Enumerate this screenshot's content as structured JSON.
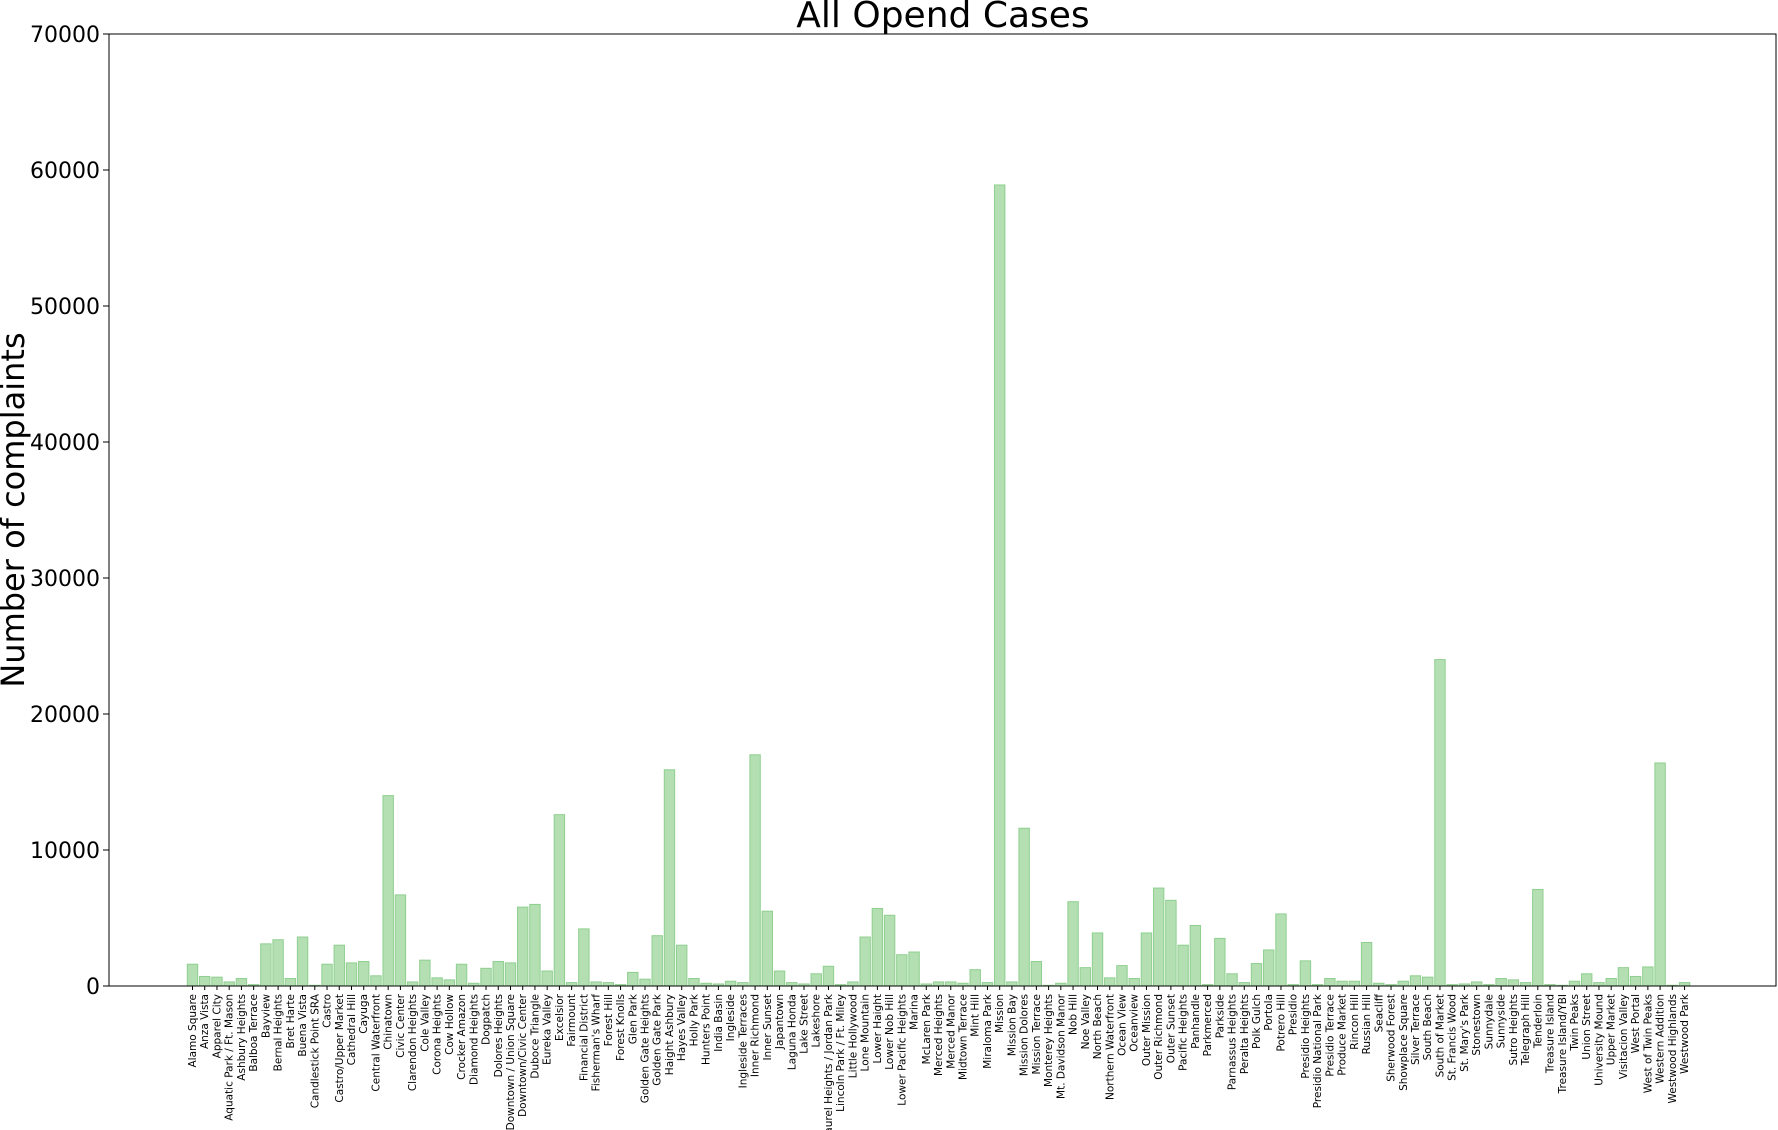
{
  "chart_data": {
    "type": "bar",
    "title": "All Opend Cases",
    "xlabel": "",
    "ylabel": "Number of complaints",
    "ylim": [
      0,
      70000
    ],
    "yticks": [
      0,
      10000,
      20000,
      30000,
      40000,
      50000,
      60000,
      70000
    ],
    "grid": false,
    "bar_color": "#b3dfb3",
    "bar_edge_color": "#8fcf8f",
    "categories": [
      "Alamo Square",
      "Anza Vista",
      "Apparel City",
      "Aquatic Park / Ft. Mason",
      "Ashbury Heights",
      "Balboa Terrace",
      "Bayview",
      "Bernal Heights",
      "Bret Harte",
      "Buena Vista",
      "Candlestick Point SRA",
      "Castro",
      "Castro/Upper Market",
      "Cathedral Hill",
      "Cayuga",
      "Central Waterfront",
      "Chinatown",
      "Civic Center",
      "Clarendon Heights",
      "Cole Valley",
      "Corona Heights",
      "Cow Hollow",
      "Crocker Amazon",
      "Diamond Heights",
      "Dogpatch",
      "Dolores Heights",
      "Downtown / Union Square",
      "Downtown/Civic Center",
      "Duboce Triangle",
      "Eureka Valley",
      "Excelsior",
      "Fairmount",
      "Financial District",
      "Fisherman's Wharf",
      "Forest Hill",
      "Forest Knolls",
      "Glen Park",
      "Golden Gate Heights",
      "Golden Gate Park",
      "Haight Ashbury",
      "Hayes Valley",
      "Holly Park",
      "Hunters Point",
      "India Basin",
      "Ingleside",
      "Ingleside Terraces",
      "Inner Richmond",
      "Inner Sunset",
      "Japantown",
      "Laguna Honda",
      "Lake Street",
      "Lakeshore",
      "Laurel Heights / Jordan Park",
      "Lincoln Park / Ft. Miley",
      "Little Hollywood",
      "Lone Mountain",
      "Lower Haight",
      "Lower Nob Hill",
      "Lower Pacific Heights",
      "Marina",
      "McLaren Park",
      "Merced Heights",
      "Merced Manor",
      "Midtown Terrace",
      "Mint Hill",
      "Miraloma Park",
      "Mission",
      "Mission Bay",
      "Mission Dolores",
      "Mission Terrace",
      "Monterey Heights",
      "Mt. Davidson Manor",
      "Nob Hill",
      "Noe Valley",
      "North Beach",
      "Northern Waterfront",
      "Ocean View",
      "Oceanview",
      "Outer Mission",
      "Outer Richmond",
      "Outer Sunset",
      "Pacific Heights",
      "Panhandle",
      "Parkmerced",
      "Parkside",
      "Parnassus Heights",
      "Peralta Heights",
      "Polk Gulch",
      "Portola",
      "Potrero Hill",
      "Presidio",
      "Presidio Heights",
      "Presidio National Park",
      "Presidio Terrace",
      "Produce Market",
      "Rincon Hill",
      "Russian Hill",
      "Seacliff",
      "Sherwood Forest",
      "Showplace Square",
      "Silver Terrace",
      "South Beach",
      "South of Market",
      "St. Francis Wood",
      "St. Mary's Park",
      "Stonestown",
      "Sunnydale",
      "Sunnyside",
      "Sutro Heights",
      "Telegraph Hill",
      "Tenderloin",
      "Treasure Island",
      "Treasure Island/YBI",
      "Twin Peaks",
      "Union Street",
      "University Mound",
      "Upper Market",
      "Visitacion Valley",
      "West Portal",
      "West of Twin Peaks",
      "Western Addition",
      "Westwood Highlands",
      "Westwood Park"
    ],
    "values": [
      1600,
      700,
      650,
      300,
      550,
      100,
      3100,
      3400,
      550,
      3600,
      50,
      1600,
      3000,
      1700,
      1800,
      750,
      14000,
      6700,
      300,
      1900,
      600,
      450,
      1600,
      200,
      1300,
      1800,
      1700,
      5800,
      6000,
      1100,
      12600,
      250,
      4200,
      300,
      250,
      100,
      1000,
      500,
      3700,
      15900,
      3000,
      550,
      200,
      150,
      350,
      250,
      17000,
      5500,
      1100,
      250,
      150,
      900,
      1450,
      100,
      300,
      3600,
      5700,
      5200,
      2300,
      2500,
      150,
      300,
      300,
      200,
      1200,
      250,
      58900,
      300,
      11600,
      1800,
      50,
      200,
      6200,
      1350,
      3900,
      600,
      1500,
      550,
      3900,
      7200,
      6300,
      3000,
      4450,
      100,
      3500,
      900,
      250,
      1650,
      2650,
      5300,
      100,
      1850,
      100,
      550,
      350,
      350,
      3200,
      200,
      100,
      350,
      750,
      650,
      24000,
      100,
      150,
      300,
      100,
      550,
      450,
      250,
      7100,
      100,
      50,
      350,
      900,
      250,
      550,
      1350,
      700,
      1400,
      16400,
      50,
      250
    ]
  }
}
